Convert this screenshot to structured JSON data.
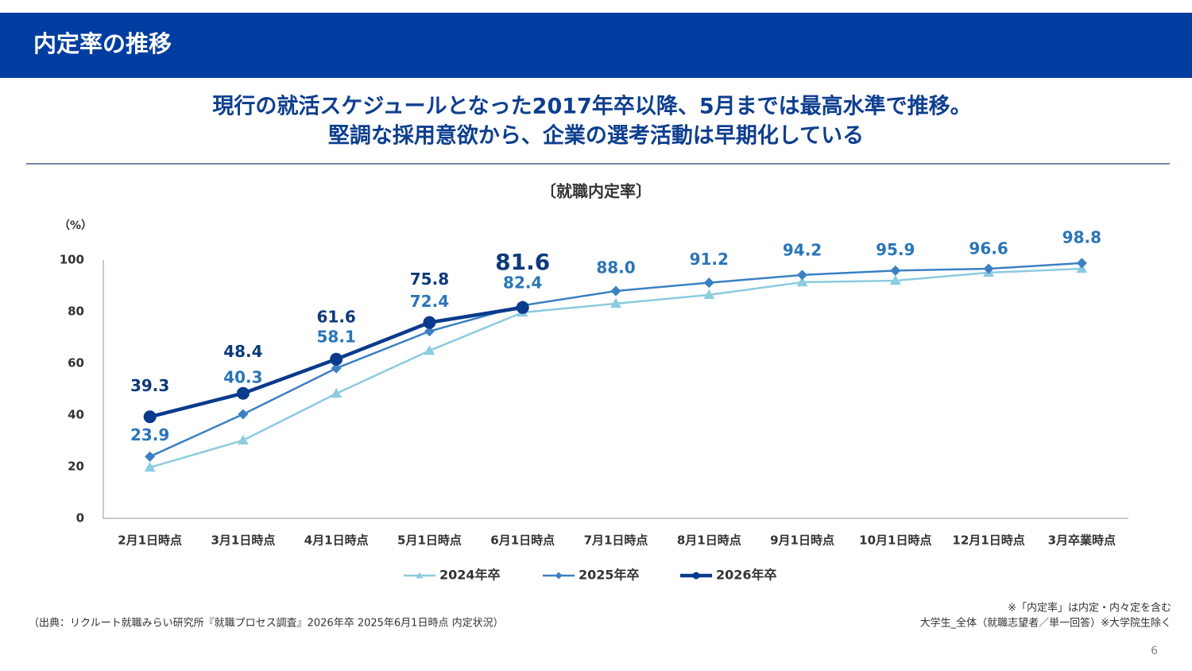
{
  "header": {
    "title": "内定率の推移"
  },
  "headline": [
    "現行の就活スケジュールとなった2017年卒以降、5月までは最高水準で推移。",
    "堅調な採用意欲から、企業の選考活動は早期化している"
  ],
  "chart_data": {
    "type": "line",
    "title": "〔就職内定率〕",
    "y_label": "（%）",
    "categories": [
      "2月1日時点",
      "3月1日時点",
      "4月1日時点",
      "5月1日時点",
      "6月1日時点",
      "7月1日時点",
      "8月1日時点",
      "9月1日時点",
      "10月1日時点",
      "12月1日時点",
      "3月卒業時点"
    ],
    "series": [
      {
        "name": "2024年卒",
        "color": "#8ccbe0",
        "marker": "triangle",
        "values": [
          19.7,
          30.2,
          48.3,
          64.9,
          79.7,
          83.1,
          86.5,
          91.4,
          92,
          95.1,
          96.6
        ]
      },
      {
        "name": "2025年卒",
        "color": "#3b80c2",
        "marker": "diamond",
        "values": [
          23.9,
          40.3,
          58.1,
          72.4,
          82.4,
          88.0,
          91.2,
          94.2,
          95.9,
          96.6,
          98.8
        ],
        "value_labels": [
          "23.9",
          "40.3",
          "58.1",
          "72.4",
          "82.4",
          "88.0",
          "91.2",
          "94.2",
          "95.9",
          "96.6",
          "98.8"
        ]
      },
      {
        "name": "2026年卒",
        "color": "#0a3a8c",
        "marker": "circle",
        "values": [
          39.3,
          48.4,
          61.6,
          75.8,
          81.6,
          null,
          null,
          null,
          null,
          null,
          null
        ],
        "value_labels": [
          "39.3",
          "48.4",
          "61.6",
          "75.8",
          "81.6",
          null,
          null,
          null,
          null,
          null,
          null
        ]
      }
    ],
    "ylim": [
      0,
      100
    ],
    "yticks": [
      0,
      20,
      40,
      60,
      80,
      100
    ],
    "grid": false
  },
  "notes": [
    "※「内定率」は内定・内々定を含む",
    "大学生_全体（就職志望者／単一回答）※大学院生除く"
  ],
  "source": "（出典：リクルート就職みらい研究所『就職プロセス調査』2026年卒 2025年6月1日時点 内定状況）",
  "page": "6"
}
